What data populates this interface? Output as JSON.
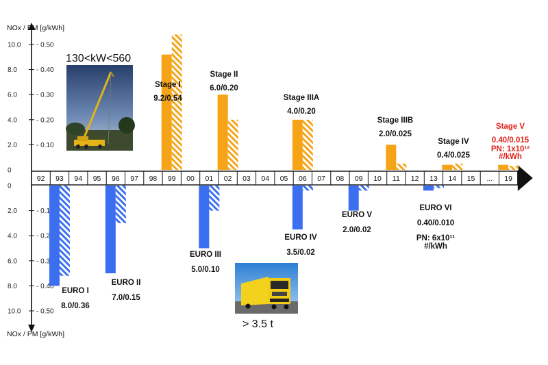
{
  "chart_data": {
    "type": "bar",
    "y_axis_label": "NOx / PM [g/kWh]",
    "nox_ticks": [
      "10.0",
      "8.0",
      "6.0",
      "4.0",
      "2.0",
      "0"
    ],
    "pm_ticks": [
      "0.50",
      "0.40",
      "0.30",
      "0.20",
      "0.10"
    ],
    "x_axis_categories": [
      "92",
      "93",
      "94",
      "95",
      "96",
      "97",
      "98",
      "99",
      "00",
      "01",
      "02",
      "03",
      "04",
      "05",
      "06",
      "07",
      "08",
      "09",
      "10",
      "11",
      "12",
      "13",
      "14",
      "15",
      "...",
      "19"
    ],
    "highlight_category": "19",
    "offroad": {
      "title": "130<kW<560",
      "color": "#f5a418",
      "stages": [
        {
          "year": "99",
          "name": "Stage I",
          "limit": "9.2/0.54",
          "nox": 9.2,
          "pm": 0.54
        },
        {
          "year": "02",
          "name": "Stage II",
          "limit": "6.0/0.20",
          "nox": 6.0,
          "pm": 0.2
        },
        {
          "year": "06",
          "name": "Stage IIIA",
          "limit": "4.0/0.20",
          "nox": 4.0,
          "pm": 0.2
        },
        {
          "year": "11",
          "name": "Stage IIIB",
          "limit": "2.0/0.025",
          "nox": 2.0,
          "pm": 0.025
        },
        {
          "year": "14",
          "name": "Stage IV",
          "limit": "0.4/0.025",
          "nox": 0.4,
          "pm": 0.025
        },
        {
          "year": "19",
          "name": "Stage V",
          "limit": "0.40/0.015",
          "nox": 0.4,
          "pm": 0.015,
          "extra": [
            "PN: 1x10¹²",
            "#/kWh"
          ],
          "highlight_color": "#e0241b"
        }
      ]
    },
    "onroad": {
      "title": "> 3.5 t",
      "color": "#3b6ff0",
      "stages": [
        {
          "year": "93",
          "name": "EURO I",
          "limit": "8.0/0.36",
          "nox": 8.0,
          "pm": 0.36
        },
        {
          "year": "96",
          "name": "EURO II",
          "limit": "7.0/0.15",
          "nox": 7.0,
          "pm": 0.15
        },
        {
          "year": "01",
          "name": "EURO III",
          "limit": "5.0/0.10",
          "nox": 5.0,
          "pm": 0.1
        },
        {
          "year": "06",
          "name": "EURO IV",
          "limit": "3.5/0.02",
          "nox": 3.5,
          "pm": 0.02
        },
        {
          "year": "09",
          "name": "EURO V",
          "limit": "2.0/0.02",
          "nox": 2.0,
          "pm": 0.02
        },
        {
          "year": "13",
          "name": "EURO VI",
          "limit": "0.40/0.010",
          "nox": 0.4,
          "pm": 0.01,
          "extra": [
            "PN: 6x10¹¹",
            "#/kWh"
          ]
        }
      ]
    }
  }
}
